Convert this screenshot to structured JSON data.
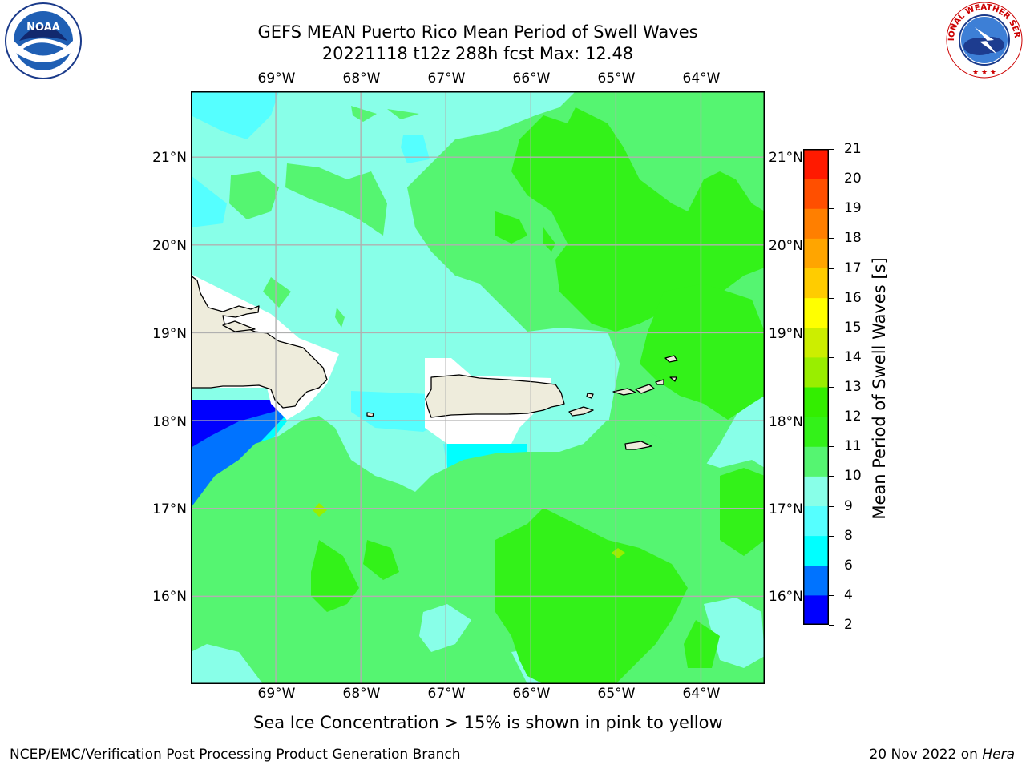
{
  "header": {
    "title": "GEFS MEAN Puerto Rico Mean Period of Swell Waves",
    "subtitle": "20221118 t12z 288h fcst   Max: 12.48"
  },
  "logos": {
    "noaa": {
      "text": "NOAA",
      "ring_text": "NATIONAL OCEANIC AND ATMOSPHERIC ADMINISTRATION · U.S. DEPARTMENT OF COMMERCE"
    },
    "nws": {
      "ring_text": "NATIONAL WEATHER SERVICE"
    }
  },
  "map": {
    "lon_labels": [
      "69°W",
      "68°W",
      "67°W",
      "66°W",
      "65°W",
      "64°W"
    ],
    "lat_labels": [
      "21°N",
      "20°N",
      "19°N",
      "18°N",
      "17°N",
      "16°N"
    ],
    "lon_values": [
      -69,
      -68,
      -67,
      -66,
      -65,
      -64
    ],
    "lat_values": [
      21,
      20,
      19,
      18,
      17,
      16
    ],
    "extent": {
      "lon_min": -70,
      "lon_max": -63.25,
      "lat_min": 15,
      "lat_max": 21.75
    },
    "colors": {
      "land": "#EEECDC",
      "grid": "#B0B0B0",
      "coast": "#000000",
      "nodata": "#FFFFFF"
    }
  },
  "colorbar": {
    "label": "Mean Period of Swell Waves [s]",
    "ticks": [
      "2",
      "4",
      "6",
      "8",
      "9",
      "10",
      "11",
      "12",
      "13",
      "14",
      "15",
      "16",
      "17",
      "18",
      "19",
      "20",
      "21"
    ],
    "colors": [
      "#0000FF",
      "#0073FF",
      "#00FFFF",
      "#55FFFF",
      "#88FFE8",
      "#55F571",
      "#33F219",
      "#33EE00",
      "#99EE00",
      "#CCEE00",
      "#FFFF00",
      "#FFCC00",
      "#FFA500",
      "#FF7F00",
      "#FF4F00",
      "#FF1A00"
    ]
  },
  "note": "Sea Ice Concentration > 15% is shown in pink to yellow",
  "footer": {
    "left": "NCEP/EMC/Verification Post Processing Product Generation Branch",
    "date": "20 Nov 2022 on",
    "host": "Hera"
  }
}
